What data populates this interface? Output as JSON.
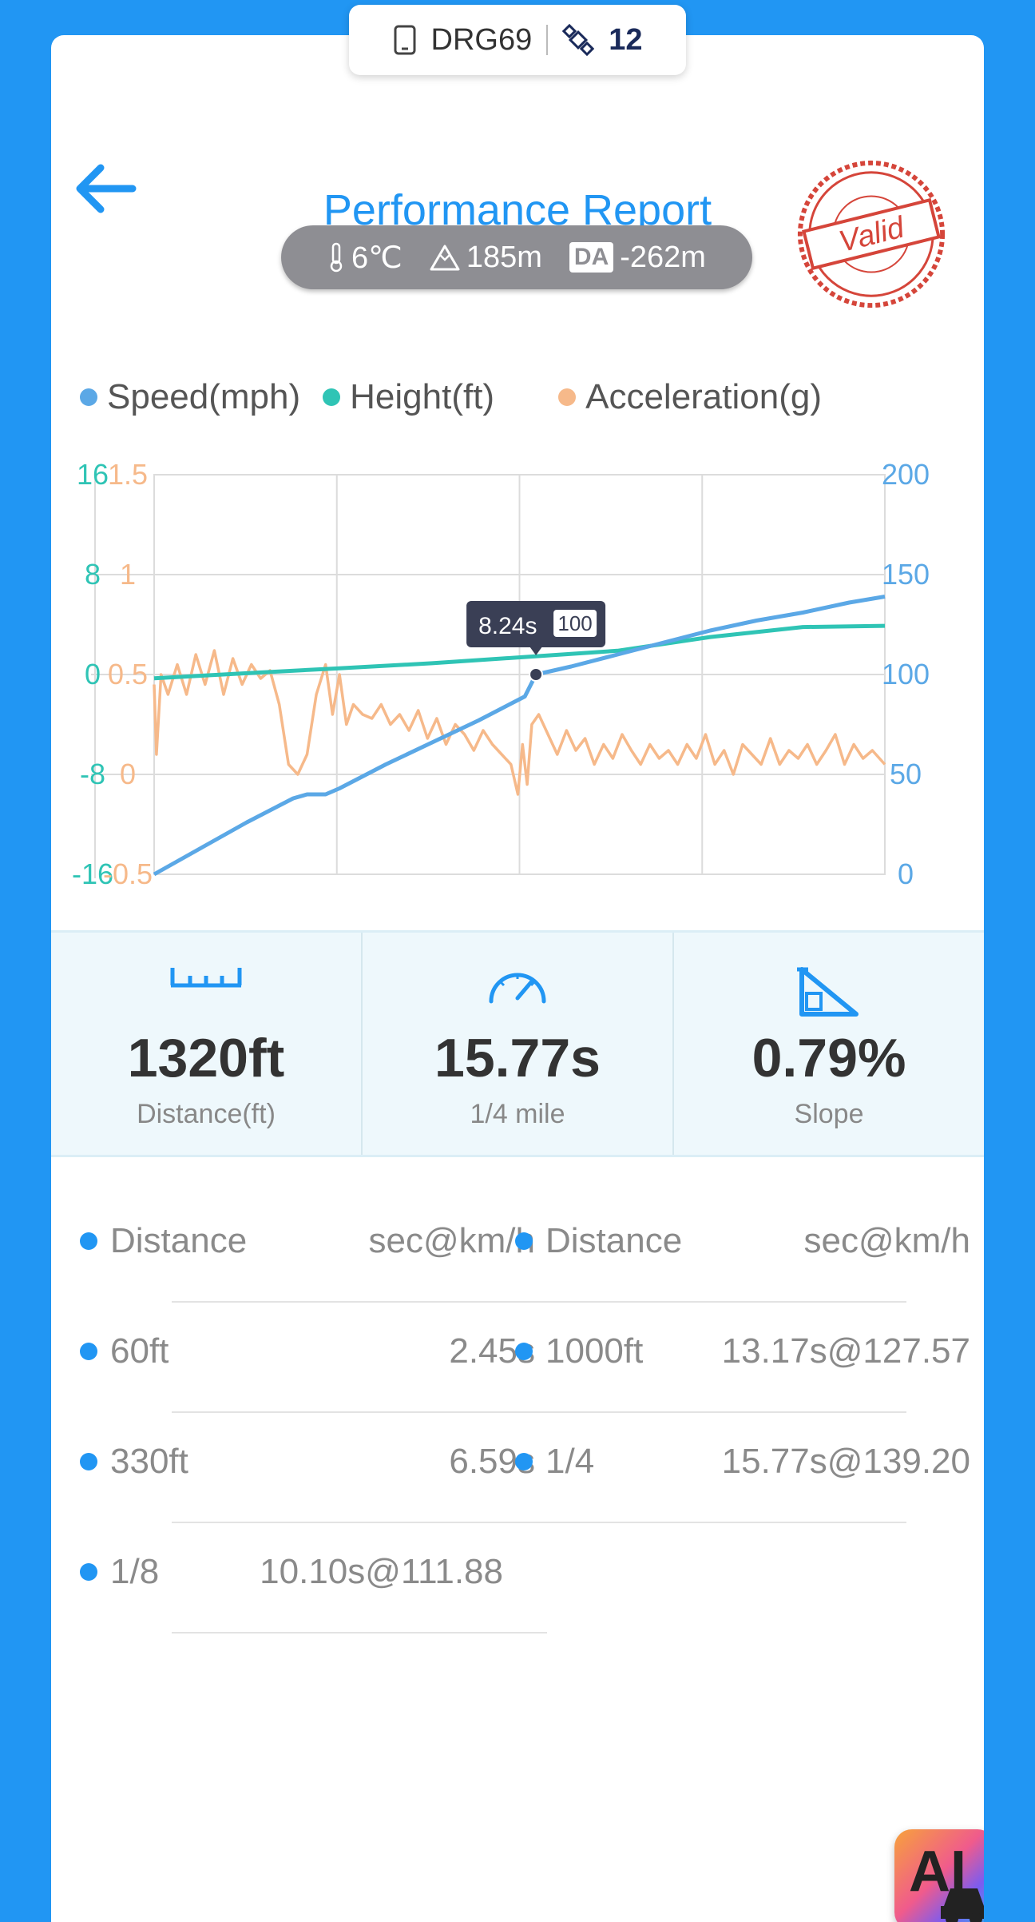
{
  "device": {
    "id": "DRG69",
    "satellites": "12"
  },
  "header": {
    "title": "Performance Report",
    "stamp": "Valid"
  },
  "conditions": {
    "temperature": "6℃",
    "altitude": "185m",
    "da_label": "DA",
    "density_altitude": "-262m"
  },
  "colors": {
    "speed": "#5BA8E6",
    "height": "#2FC4B5",
    "acceleration": "#F6B98A",
    "accent": "#2196F3"
  },
  "chart_data": {
    "type": "line",
    "legend": [
      {
        "name": "Speed(mph)",
        "color": "#5BA8E6"
      },
      {
        "name": "Height(ft)",
        "color": "#2FC4B5"
      },
      {
        "name": "Acceleration(g)",
        "color": "#F6B98A"
      }
    ],
    "xlim": [
      0,
      15.77
    ],
    "height_axis": {
      "ticks": [
        "16",
        "8",
        "0",
        "-8",
        "-16"
      ],
      "range": [
        -16,
        16
      ]
    },
    "accel_axis": {
      "ticks": [
        "1.5",
        "1",
        "0.5",
        "0",
        "-0.5"
      ],
      "range": [
        -0.5,
        1.5
      ]
    },
    "speed_axis": {
      "ticks": [
        "200",
        "150",
        "100",
        "50",
        "0"
      ],
      "range": [
        0,
        200
      ]
    },
    "series": [
      {
        "name": "Speed(mph)",
        "x": [
          0,
          1,
          2,
          3,
          3.3,
          3.7,
          4,
          5,
          6,
          7,
          8,
          8.24,
          9,
          10,
          11,
          12,
          13,
          14,
          15,
          15.77
        ],
        "values": [
          0,
          13,
          26,
          38,
          40,
          40,
          43,
          55,
          66,
          77,
          89,
          100,
          104,
          110,
          116,
          122,
          127,
          131,
          136,
          139
        ]
      },
      {
        "name": "Height(ft)",
        "x": [
          0,
          2,
          4,
          6,
          8,
          10,
          12,
          14,
          15.77
        ],
        "values": [
          -0.3,
          0.1,
          0.5,
          0.9,
          1.4,
          1.9,
          3.0,
          3.8,
          3.9
        ]
      },
      {
        "name": "Acceleration(g)",
        "x": [
          0,
          0.05,
          0.15,
          0.3,
          0.5,
          0.7,
          0.9,
          1.1,
          1.3,
          1.5,
          1.7,
          1.9,
          2.1,
          2.3,
          2.5,
          2.7,
          2.9,
          3.1,
          3.3,
          3.5,
          3.7,
          3.85,
          4.0,
          4.15,
          4.3,
          4.5,
          4.7,
          4.9,
          5.1,
          5.3,
          5.5,
          5.7,
          5.9,
          6.1,
          6.3,
          6.5,
          6.7,
          6.9,
          7.1,
          7.3,
          7.5,
          7.7,
          7.85,
          7.95,
          8.05,
          8.15,
          8.3,
          8.5,
          8.7,
          8.9,
          9.1,
          9.3,
          9.5,
          9.7,
          9.9,
          10.1,
          10.3,
          10.5,
          10.7,
          10.9,
          11.1,
          11.3,
          11.5,
          11.7,
          11.9,
          12.1,
          12.3,
          12.5,
          12.7,
          12.9,
          13.1,
          13.3,
          13.5,
          13.7,
          13.9,
          14.1,
          14.3,
          14.5,
          14.7,
          14.9,
          15.1,
          15.3,
          15.5,
          15.77
        ],
        "values": [
          0.45,
          0.1,
          0.5,
          0.4,
          0.55,
          0.4,
          0.6,
          0.45,
          0.62,
          0.4,
          0.58,
          0.45,
          0.55,
          0.48,
          0.52,
          0.35,
          0.05,
          0.0,
          0.1,
          0.4,
          0.55,
          0.3,
          0.5,
          0.25,
          0.35,
          0.3,
          0.28,
          0.35,
          0.25,
          0.3,
          0.22,
          0.32,
          0.18,
          0.28,
          0.15,
          0.25,
          0.2,
          0.12,
          0.22,
          0.15,
          0.1,
          0.05,
          -0.1,
          0.15,
          -0.05,
          0.25,
          0.3,
          0.2,
          0.1,
          0.22,
          0.12,
          0.18,
          0.05,
          0.15,
          0.08,
          0.2,
          0.12,
          0.05,
          0.15,
          0.08,
          0.12,
          0.05,
          0.15,
          0.08,
          0.2,
          0.05,
          0.12,
          0.0,
          0.15,
          0.1,
          0.05,
          0.18,
          0.05,
          0.12,
          0.08,
          0.15,
          0.05,
          0.12,
          0.2,
          0.05,
          0.15,
          0.08,
          0.12,
          0.05
        ]
      }
    ],
    "tooltip": {
      "time": "8.24s",
      "value": "100"
    }
  },
  "stats": [
    {
      "value": "1320ft",
      "label": "Distance(ft)"
    },
    {
      "value": "15.77s",
      "label": "1/4 mile"
    },
    {
      "value": "0.79%",
      "label": "Slope"
    }
  ],
  "splits": {
    "header": {
      "key": "Distance",
      "value": "sec@km/h"
    },
    "left": [
      {
        "key": "60ft",
        "value": "2.45s"
      },
      {
        "key": "330ft",
        "value": "6.59s"
      },
      {
        "key": "1/8",
        "value": "10.10s@111.88"
      }
    ],
    "right": [
      {
        "key": "1000ft",
        "value": "13.17s@127.57"
      },
      {
        "key": "1/4",
        "value": "15.77s@139.20"
      }
    ]
  },
  "ai_button": {
    "label": "AI"
  }
}
